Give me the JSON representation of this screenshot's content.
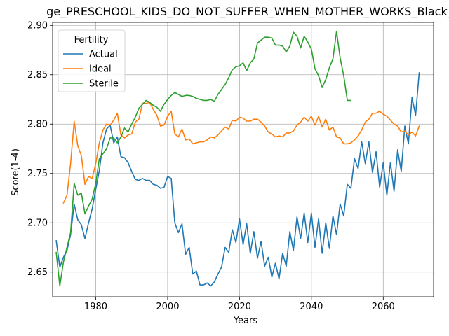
{
  "chart_data": {
    "type": "line",
    "title": "ge_PRESCHOOL_KIDS_DO_NOT_SUFFER_WHEN_MOTHER_WORKS_Black_Below",
    "xlabel": "Years",
    "ylabel": "Score(1-4)",
    "xlim": [
      1968,
      2074
    ],
    "ylim": [
      2.625,
      2.903
    ],
    "xticks": [
      1980,
      2000,
      2020,
      2040,
      2060
    ],
    "yticks": [
      2.65,
      2.7,
      2.75,
      2.8,
      2.85,
      2.9
    ],
    "grid": true,
    "legend": {
      "title": "Fertility",
      "placement": "upper-left"
    },
    "series": [
      {
        "name": "Actual",
        "color": "#1f77b4",
        "x": [
          1969,
          1970,
          1971,
          1972,
          1973,
          1974,
          1975,
          1976,
          1977,
          1978,
          1979,
          1980,
          1981,
          1982,
          1983,
          1984,
          1985,
          1986,
          1987,
          1988,
          1989,
          1990,
          1991,
          1992,
          1993,
          1994,
          1995,
          1996,
          1997,
          1998,
          1999,
          2000,
          2001,
          2002,
          2003,
          2004,
          2005,
          2006,
          2007,
          2008,
          2009,
          2010,
          2011,
          2012,
          2013,
          2014,
          2015,
          2016,
          2017,
          2018,
          2019,
          2020,
          2021,
          2022,
          2023,
          2024,
          2025,
          2026,
          2027,
          2028,
          2029,
          2030,
          2031,
          2032,
          2033,
          2034,
          2035,
          2036,
          2037,
          2038,
          2039,
          2040,
          2041,
          2042,
          2043,
          2044,
          2045,
          2046,
          2047,
          2048,
          2049,
          2050,
          2051,
          2052,
          2053,
          2054,
          2055,
          2056,
          2057,
          2058,
          2059,
          2060,
          2061,
          2062,
          2063,
          2064,
          2065,
          2066,
          2067,
          2068,
          2069,
          2070
        ],
        "values": [
          2.682,
          2.655,
          2.665,
          2.672,
          2.688,
          2.719,
          2.703,
          2.698,
          2.684,
          2.7,
          2.714,
          2.734,
          2.753,
          2.781,
          2.795,
          2.799,
          2.781,
          2.787,
          2.767,
          2.766,
          2.761,
          2.752,
          2.744,
          2.743,
          2.745,
          2.743,
          2.743,
          2.739,
          2.738,
          2.735,
          2.736,
          2.747,
          2.745,
          2.7,
          2.69,
          2.699,
          2.668,
          2.675,
          2.648,
          2.651,
          2.637,
          2.637,
          2.639,
          2.636,
          2.64,
          2.648,
          2.655,
          2.675,
          2.67,
          2.693,
          2.68,
          2.704,
          2.678,
          2.699,
          2.669,
          2.691,
          2.664,
          2.681,
          2.656,
          2.665,
          2.645,
          2.659,
          2.643,
          2.669,
          2.656,
          2.691,
          2.672,
          2.706,
          2.684,
          2.71,
          2.68,
          2.71,
          2.675,
          2.704,
          2.669,
          2.7,
          2.674,
          2.707,
          2.688,
          2.719,
          2.707,
          2.739,
          2.735,
          2.765,
          2.755,
          2.782,
          2.76,
          2.782,
          2.751,
          2.772,
          2.736,
          2.761,
          2.728,
          2.761,
          2.732,
          2.774,
          2.752,
          2.798,
          2.78,
          2.827,
          2.809,
          2.852
        ]
      },
      {
        "name": "Ideal",
        "color": "#ff7f0e",
        "x": [
          1971,
          1972,
          1973,
          1974,
          1975,
          1976,
          1977,
          1978,
          1979,
          1980,
          1981,
          1982,
          1983,
          1984,
          1985,
          1986,
          1987,
          1988,
          1989,
          1990,
          1991,
          1992,
          1993,
          1994,
          1995,
          1996,
          1997,
          1998,
          1999,
          2000,
          2001,
          2002,
          2003,
          2004,
          2005,
          2006,
          2007,
          2008,
          2009,
          2010,
          2011,
          2012,
          2013,
          2014,
          2015,
          2016,
          2017,
          2018,
          2019,
          2020,
          2021,
          2022,
          2023,
          2024,
          2025,
          2026,
          2027,
          2028,
          2029,
          2030,
          2031,
          2032,
          2033,
          2034,
          2035,
          2036,
          2037,
          2038,
          2039,
          2040,
          2041,
          2042,
          2043,
          2044,
          2045,
          2046,
          2047,
          2048,
          2049,
          2050,
          2051,
          2052,
          2053,
          2054,
          2055,
          2056,
          2057,
          2058,
          2059,
          2060,
          2061,
          2062,
          2063,
          2064,
          2065,
          2066,
          2067,
          2068,
          2069,
          2070
        ],
        "values": [
          2.72,
          2.728,
          2.76,
          2.803,
          2.778,
          2.768,
          2.739,
          2.747,
          2.745,
          2.76,
          2.781,
          2.794,
          2.8,
          2.799,
          2.804,
          2.811,
          2.789,
          2.786,
          2.789,
          2.79,
          2.802,
          2.805,
          2.821,
          2.821,
          2.822,
          2.815,
          2.809,
          2.798,
          2.799,
          2.808,
          2.813,
          2.79,
          2.787,
          2.795,
          2.784,
          2.785,
          2.78,
          2.781,
          2.782,
          2.782,
          2.784,
          2.787,
          2.786,
          2.789,
          2.793,
          2.797,
          2.795,
          2.804,
          2.803,
          2.807,
          2.806,
          2.803,
          2.803,
          2.805,
          2.805,
          2.802,
          2.798,
          2.792,
          2.79,
          2.787,
          2.788,
          2.787,
          2.791,
          2.791,
          2.793,
          2.799,
          2.802,
          2.807,
          2.803,
          2.808,
          2.799,
          2.808,
          2.797,
          2.805,
          2.794,
          2.797,
          2.787,
          2.786,
          2.78,
          2.78,
          2.781,
          2.784,
          2.788,
          2.794,
          2.802,
          2.805,
          2.811,
          2.811,
          2.813,
          2.81,
          2.808,
          2.804,
          2.8,
          2.798,
          2.792,
          2.793,
          2.789,
          2.792,
          2.788,
          2.798
        ]
      },
      {
        "name": "Sterile",
        "color": "#2ca02c",
        "x": [
          1969,
          1970,
          1971,
          1972,
          1973,
          1974,
          1975,
          1976,
          1977,
          1978,
          1979,
          1980,
          1981,
          1982,
          1983,
          1984,
          1985,
          1986,
          1987,
          1988,
          1989,
          1990,
          1991,
          1992,
          1993,
          1994,
          1995,
          1996,
          1997,
          1998,
          1999,
          2000,
          2001,
          2002,
          2003,
          2004,
          2005,
          2006,
          2007,
          2008,
          2009,
          2010,
          2011,
          2012,
          2013,
          2014,
          2015,
          2016,
          2017,
          2018,
          2019,
          2020,
          2021,
          2022,
          2023,
          2024,
          2025,
          2026,
          2027,
          2028,
          2029,
          2030,
          2031,
          2032,
          2033,
          2034,
          2035,
          2036,
          2037,
          2038,
          2039,
          2040,
          2041,
          2042,
          2043,
          2044,
          2045,
          2046,
          2047,
          2048,
          2049,
          2050,
          2051
        ],
        "values": [
          2.67,
          2.636,
          2.66,
          2.675,
          2.69,
          2.74,
          2.728,
          2.73,
          2.709,
          2.717,
          2.724,
          2.74,
          2.765,
          2.77,
          2.775,
          2.786,
          2.786,
          2.781,
          2.787,
          2.796,
          2.792,
          2.8,
          2.807,
          2.816,
          2.82,
          2.824,
          2.822,
          2.819,
          2.817,
          2.813,
          2.82,
          2.825,
          2.829,
          2.832,
          2.83,
          2.828,
          2.829,
          2.829,
          2.828,
          2.826,
          2.825,
          2.824,
          2.824,
          2.825,
          2.823,
          2.83,
          2.835,
          2.84,
          2.847,
          2.855,
          2.858,
          2.859,
          2.862,
          2.854,
          2.862,
          2.866,
          2.882,
          2.885,
          2.888,
          2.888,
          2.887,
          2.88,
          2.88,
          2.879,
          2.873,
          2.879,
          2.893,
          2.889,
          2.877,
          2.889,
          2.883,
          2.876,
          2.856,
          2.849,
          2.837,
          2.845,
          2.857,
          2.866,
          2.894,
          2.867,
          2.849,
          2.824,
          2.824
        ]
      }
    ]
  }
}
